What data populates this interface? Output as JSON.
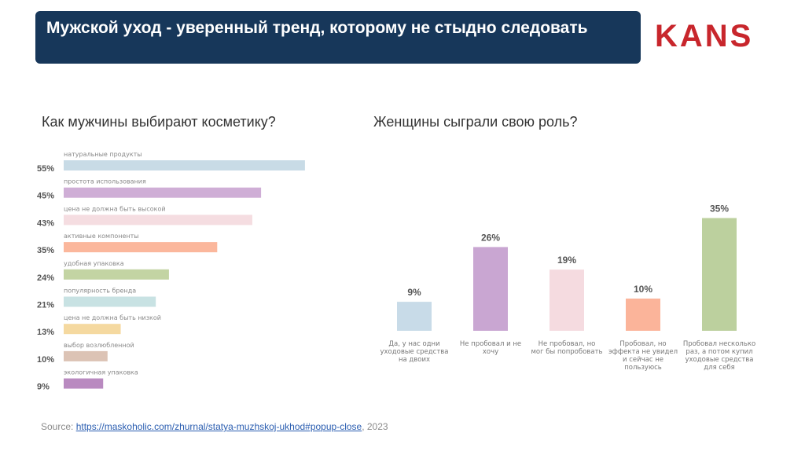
{
  "header": {
    "title": "Мужской уход -  уверенный тренд, которому не стыдно следовать",
    "logo": "KANS"
  },
  "source": {
    "label": "Source: ",
    "link": "https://maskoholic.com/zhurnal/statya-muzhskoj-ukhod#popup-close",
    "year": ", 2023"
  },
  "chart_data": [
    {
      "type": "bar",
      "orientation": "horizontal",
      "title": "Как мужчины выбирают косметику?",
      "categories": [
        "натуральные продукты",
        "простота использования",
        "цена не должна быть высокой",
        "активные компоненты",
        "удобная упаковка",
        "популярность бренда",
        "цена не должна быть низкой",
        "выбор возлюбленной",
        "экологичная упаковка"
      ],
      "values": [
        55,
        45,
        43,
        35,
        24,
        21,
        13,
        10,
        9
      ],
      "value_labels": [
        "55%",
        "45%",
        "43%",
        "35%",
        "24%",
        "21%",
        "13%",
        "10%",
        "9%"
      ],
      "colors": [
        "#c8dbe6",
        "#cfaed6",
        "#f5dde1",
        "#fbb79c",
        "#c3d4a3",
        "#c8e2e3",
        "#f5d9a0",
        "#dcc3b5",
        "#b98ac0"
      ]
    },
    {
      "type": "bar",
      "title": "Женщины сыграли свою роль?",
      "categories": [
        "Да, у нас одни уходовые средства на двоих",
        "Не пробовал и не хочу",
        "Не пробовал, но мог бы попробовать",
        "Пробовал, но эффекта не увидел и сейчас не пользуюсь",
        "Пробовал несколько раз, а потом купил уходовые средства для себя"
      ],
      "values": [
        9,
        26,
        19,
        10,
        35
      ],
      "value_labels": [
        "9%",
        "26%",
        "19%",
        "10%",
        "35%"
      ],
      "colors": [
        "#c8dbe8",
        "#c9a6d2",
        "#f5dbe0",
        "#fbb49a",
        "#bcd09e"
      ]
    }
  ]
}
